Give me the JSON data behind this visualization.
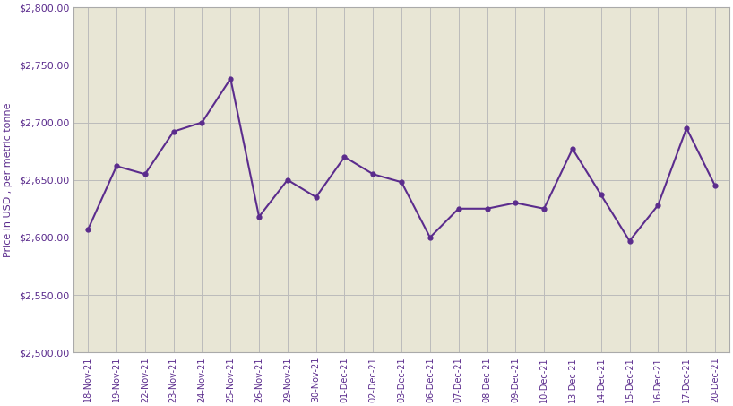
{
  "dates": [
    "18-Nov-21",
    "19-Nov-21",
    "22-Nov-21",
    "23-Nov-21",
    "24-Nov-21",
    "25-Nov-21",
    "26-Nov-21",
    "29-Nov-21",
    "30-Nov-21",
    "01-Dec-21",
    "02-Dec-21",
    "03-Dec-21",
    "06-Dec-21",
    "07-Dec-21",
    "08-Dec-21",
    "09-Dec-21",
    "10-Dec-21",
    "13-Dec-21",
    "14-Dec-21",
    "15-Dec-21",
    "16-Dec-21",
    "17-Dec-21",
    "20-Dec-21"
  ],
  "values": [
    2607,
    2662,
    2655,
    2692,
    2700,
    2738,
    2618,
    2650,
    2635,
    2670,
    2655,
    2648,
    2600,
    2625,
    2625,
    2630,
    2625,
    2677,
    2637,
    2597,
    2628,
    2695,
    2645
  ],
  "line_color": "#5B2C8D",
  "marker": "o",
  "marker_size": 3.5,
  "linewidth": 1.5,
  "ylabel": "Price in USD , per metric tonne",
  "ylim": [
    2500,
    2800
  ],
  "yticks": [
    2500,
    2550,
    2600,
    2650,
    2700,
    2750,
    2800
  ],
  "plot_bg_color": "#E8E6D5",
  "outer_bg_color": "#FFFFFF",
  "grid_color": "#BBBBBB",
  "tick_label_color": "#5B2C8D",
  "ylabel_color": "#5B2C8D",
  "spine_color": "#AAAAAA",
  "ytick_fontsize": 8,
  "xtick_fontsize": 7
}
